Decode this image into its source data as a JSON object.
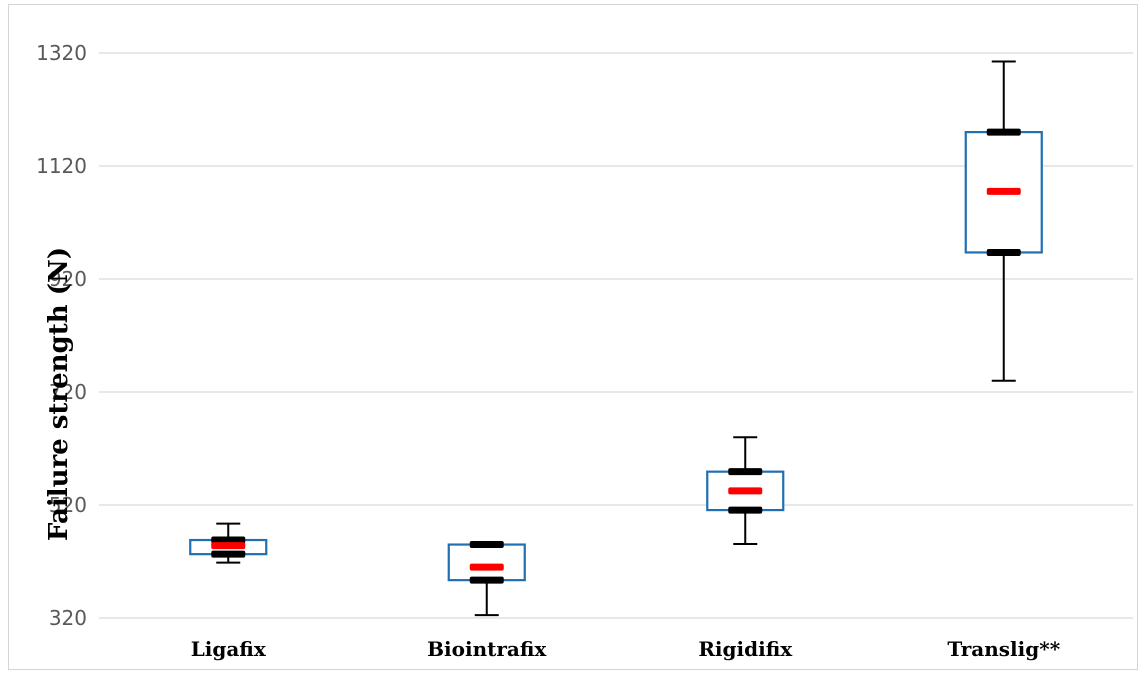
{
  "chart_data": {
    "type": "box",
    "title": "",
    "xlabel": "",
    "ylabel": "Failure strength (N)",
    "ylim": [
      320,
      1320
    ],
    "yticks": [
      320,
      520,
      720,
      920,
      1120,
      1320
    ],
    "grid": true,
    "categories": [
      "Ligafix",
      "Biointrafix",
      "Rigidifix",
      "Translig**"
    ],
    "boxes": [
      {
        "category": "Ligafix",
        "min": 418,
        "q1": 433,
        "median": 448,
        "mean": 448,
        "q3": 458,
        "max": 487
      },
      {
        "category": "Biointrafix",
        "min": 325,
        "q1": 387,
        "median": 410,
        "mean": 410,
        "q3": 450,
        "max": 453
      },
      {
        "category": "Rigidifix",
        "min": 451,
        "q1": 511,
        "median": 545,
        "mean": 545,
        "q3": 579,
        "max": 640
      },
      {
        "category": "Translig**",
        "min": 740,
        "q1": 967,
        "median": 1075,
        "mean": 1075,
        "q3": 1180,
        "max": 1305
      }
    ],
    "colors": {
      "box": "#1f6fb2",
      "whisker": "#000000",
      "quartile_marker": "#000000",
      "median_marker": "#ff0000",
      "grid": "#d9d9d9"
    }
  }
}
